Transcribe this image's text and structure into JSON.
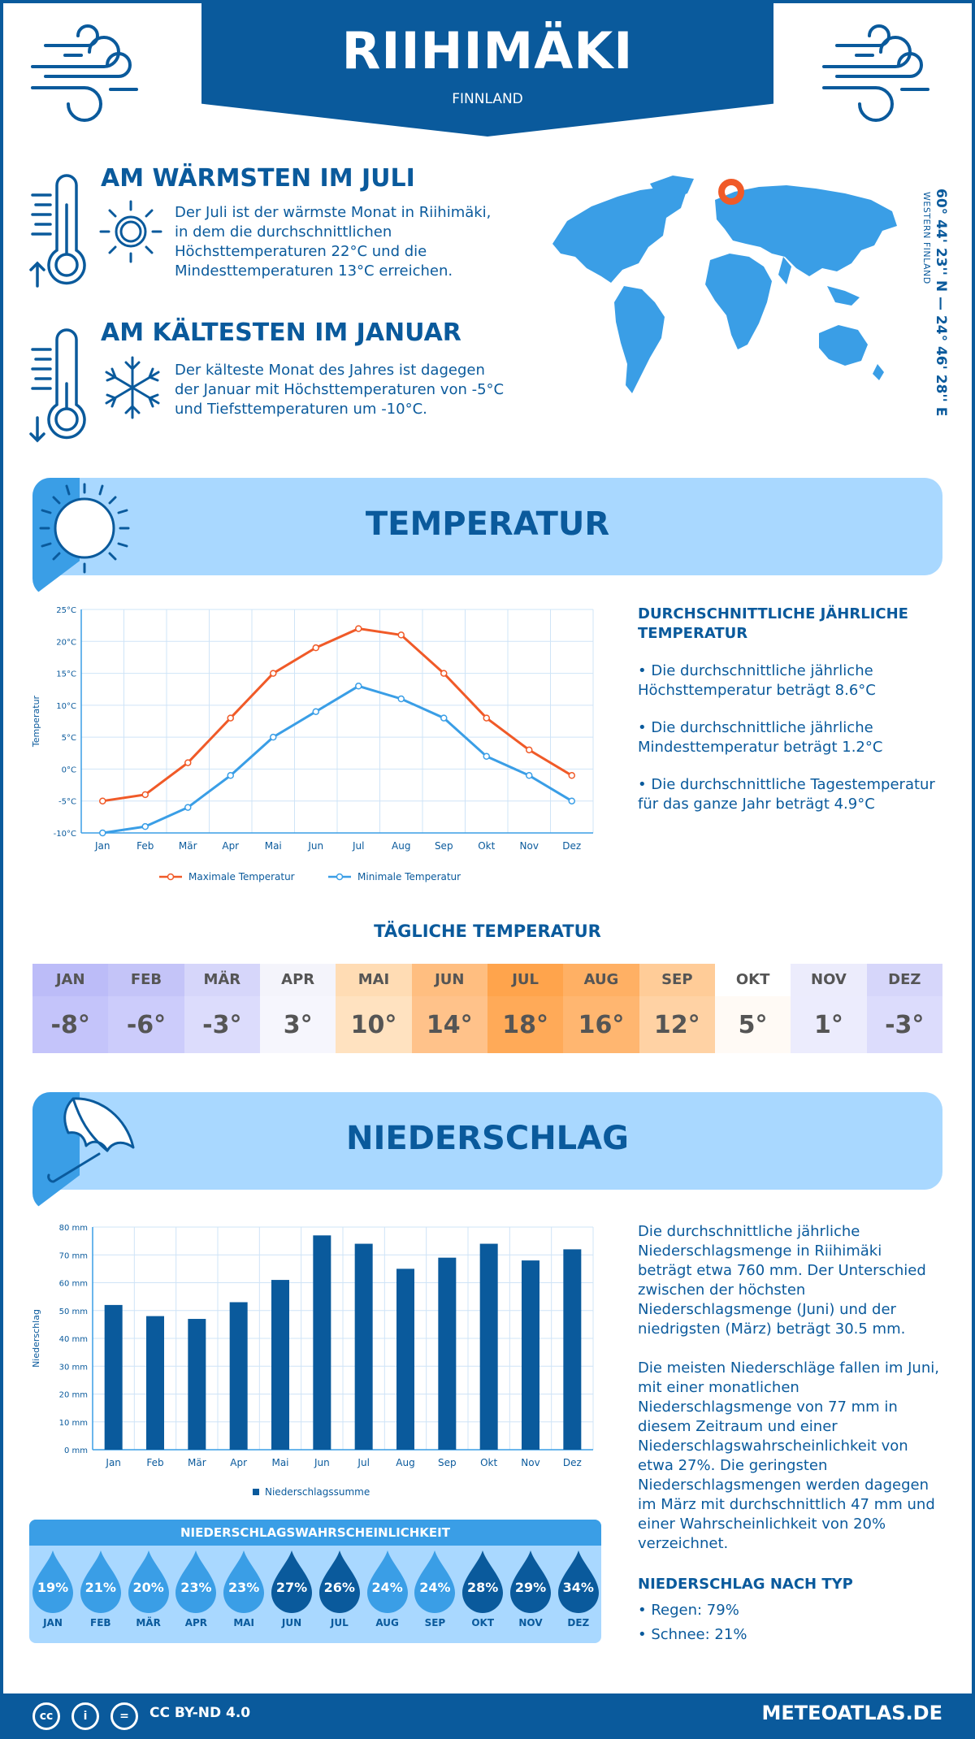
{
  "header": {
    "city": "RIIHIMÄKI",
    "country": "FINNLAND"
  },
  "facts": {
    "warm_title": "AM WÄRMSTEN IM JULI",
    "warm_text": [
      "Der Juli ist der wärmste Monat in Riihimäki,",
      "in dem die durchschnittlichen",
      "Höchsttemperaturen 22°C und die",
      "Mindesttemperaturen 13°C erreichen."
    ],
    "cold_title": "AM KÄLTESTEN IM JANUAR",
    "cold_text": [
      "Der kälteste Monat des Jahres ist dagegen",
      "der Januar mit Höchsttemperaturen von -5°C",
      "und Tiefsttemperaturen um -10°C."
    ]
  },
  "location": {
    "coordinates": "60° 44' 23'' N — 24° 46' 28'' E",
    "region": "WESTERN FINLAND"
  },
  "temperature_section": {
    "title": "TEMPERATUR",
    "side_heading": [
      "DURCHSCHNITTLICHE JÄHRLICHE",
      "TEMPERATUR"
    ],
    "bullets": [
      [
        "• Die durchschnittliche jährliche",
        "Höchsttemperatur beträgt 8.6°C"
      ],
      [
        "• Die durchschnittliche jährliche",
        "Mindesttemperatur beträgt 1.2°C"
      ],
      [
        "• Die durchschnittliche Tagestemperatur",
        "für das ganze Jahr beträgt 4.9°C"
      ]
    ]
  },
  "chart_data": [
    {
      "type": "line",
      "ylabel": "Temperatur",
      "x": [
        "Jan",
        "Feb",
        "Mär",
        "Apr",
        "Mai",
        "Jun",
        "Jul",
        "Aug",
        "Sep",
        "Okt",
        "Nov",
        "Dez"
      ],
      "ylim": [
        -10,
        25
      ],
      "yticks": [
        "-10°C",
        "-5°C",
        "0°C",
        "5°C",
        "10°C",
        "15°C",
        "20°C",
        "25°C"
      ],
      "series": [
        {
          "name": "Maximale Temperatur",
          "color": "#f05a28",
          "values": [
            -5,
            -4,
            1,
            8,
            15,
            19,
            22,
            21,
            15,
            8,
            3,
            -1
          ]
        },
        {
          "name": "Minimale Temperatur",
          "color": "#3a9ee6",
          "values": [
            -10,
            -9,
            -6,
            -1,
            5,
            9,
            13,
            11,
            8,
            2,
            -1,
            -5
          ]
        }
      ],
      "grid": true,
      "legend": "bottom"
    },
    {
      "type": "bar",
      "ylabel": "Niederschlag",
      "categories": [
        "Jan",
        "Feb",
        "Mär",
        "Apr",
        "Mai",
        "Jun",
        "Jul",
        "Aug",
        "Sep",
        "Okt",
        "Nov",
        "Dez"
      ],
      "ylim": [
        0,
        80
      ],
      "yticks": [
        "0 mm",
        "10 mm",
        "20 mm",
        "30 mm",
        "40 mm",
        "50 mm",
        "60 mm",
        "70 mm",
        "80 mm"
      ],
      "series": [
        {
          "name": "Niederschlagssumme",
          "color": "#0a5a9c",
          "values": [
            52,
            48,
            47,
            53,
            61,
            77,
            74,
            65,
            69,
            74,
            68,
            72
          ]
        }
      ],
      "grid": true,
      "legend": "bottom"
    }
  ],
  "daily_temperature": {
    "title": "TÄGLICHE TEMPERATUR",
    "months": [
      {
        "m": "JAN",
        "v": "-8°",
        "head": "#bcbcf8",
        "bg": "#c4c4fa"
      },
      {
        "m": "FEB",
        "v": "-6°",
        "head": "#c4c4f8",
        "bg": "#ccccfb"
      },
      {
        "m": "MÄR",
        "v": "-3°",
        "head": "#d6d6fa",
        "bg": "#dcdcfc"
      },
      {
        "m": "APR",
        "v": "3°",
        "head": "#f4f4fb",
        "bg": "#f6f6fd"
      },
      {
        "m": "MAI",
        "v": "10°",
        "head": "#ffdcb4",
        "bg": "#ffe2c0"
      },
      {
        "m": "JUN",
        "v": "14°",
        "head": "#ffbe80",
        "bg": "#ffc28a"
      },
      {
        "m": "JUL",
        "v": "18°",
        "head": "#ffa44c",
        "bg": "#ffaa58"
      },
      {
        "m": "AUG",
        "v": "16°",
        "head": "#ffb064",
        "bg": "#ffb670"
      },
      {
        "m": "SEP",
        "v": "12°",
        "head": "#ffcc98",
        "bg": "#ffd2a4"
      },
      {
        "m": "OKT",
        "v": "5°",
        "head": "#ffffff",
        "bg": "#fffaf5"
      },
      {
        "m": "NOV",
        "v": "1°",
        "head": "#ececfc",
        "bg": "#ececfd"
      },
      {
        "m": "DEZ",
        "v": "-3°",
        "head": "#d6d6fa",
        "bg": "#dcdcfc"
      }
    ]
  },
  "precipitation_section": {
    "title": "NIEDERSCHLAG",
    "para1": [
      "Die durchschnittliche jährliche",
      "Niederschlagsmenge in Riihimäki",
      "beträgt etwa 760 mm. Der Unterschied",
      "zwischen der höchsten",
      "Niederschlagsmenge (Juni) und der",
      "niedrigsten (März) beträgt 30.5 mm."
    ],
    "para2": [
      "Die meisten Niederschläge fallen im Juni,",
      "mit einer monatlichen",
      "Niederschlagsmenge von 77 mm in",
      "diesem Zeitraum und einer",
      "Niederschlagswahrscheinlichkeit von",
      "etwa 27%. Die geringsten",
      "Niederschlagsmengen werden dagegen",
      "im März mit durchschnittlich 47 mm und",
      "einer Wahrscheinlichkeit von 20%",
      "verzeichnet."
    ],
    "type_heading": "NIEDERSCHLAG NACH TYP",
    "type_rain": "• Regen: 79%",
    "type_snow": "• Schnee: 21%"
  },
  "probability": {
    "title": "NIEDERSCHLAGSWAHRSCHEINLICHKEIT",
    "months": [
      "JAN",
      "FEB",
      "MÄR",
      "APR",
      "MAI",
      "JUN",
      "JUL",
      "AUG",
      "SEP",
      "OKT",
      "NOV",
      "DEZ"
    ],
    "values": [
      "19%",
      "21%",
      "20%",
      "23%",
      "23%",
      "27%",
      "26%",
      "24%",
      "24%",
      "28%",
      "29%",
      "34%"
    ],
    "colors": [
      "#3a9ee6",
      "#3a9ee6",
      "#3a9ee6",
      "#3a9ee6",
      "#3a9ee6",
      "#0a5a9c",
      "#0a5a9c",
      "#3a9ee6",
      "#3a9ee6",
      "#0a5a9c",
      "#0a5a9c",
      "#0a5a9c"
    ]
  },
  "footer": {
    "license": "CC BY-ND 4.0",
    "site": "METEOATLAS.DE",
    "icon_cc": "cc",
    "icon_by": "i",
    "icon_nd": "="
  }
}
